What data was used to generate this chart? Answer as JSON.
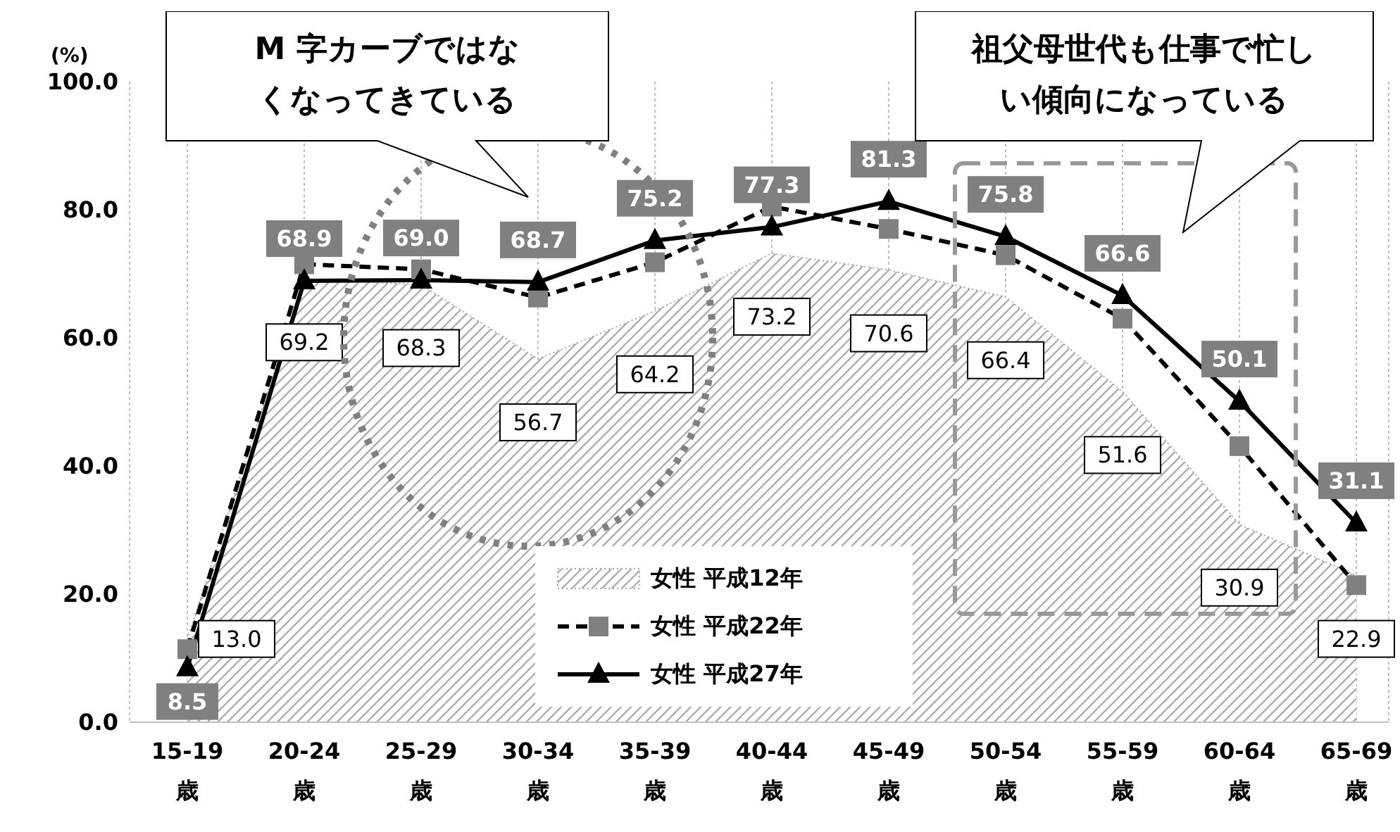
{
  "chart_data": {
    "type": "line",
    "ylabel": "(%)",
    "categories": [
      "15-19\n歳",
      "20-24\n歳",
      "25-29\n歳",
      "30-34\n歳",
      "35-39\n歳",
      "40-44\n歳",
      "45-49\n歳",
      "50-54\n歳",
      "55-59\n歳",
      "60-64\n歳",
      "65-69\n歳"
    ],
    "series": [
      {
        "name": "女性 平成12年",
        "type": "area",
        "color": "#a6a6a6",
        "marker": "none",
        "line_style": "dotted",
        "values": [
          13.0,
          69.2,
          68.3,
          56.7,
          64.2,
          73.2,
          70.6,
          66.4,
          51.6,
          30.9,
          22.9
        ],
        "value_labels": [
          "13.0",
          "69.2",
          "68.3",
          "56.7",
          "64.2",
          "73.2",
          "70.6",
          "66.4",
          "51.6",
          "30.9",
          "22.9"
        ]
      },
      {
        "name": "女性 平成22年",
        "color": "#000000",
        "marker": "square",
        "line_style": "dashed",
        "values": [
          11.4,
          71.5,
          70.7,
          66.3,
          71.8,
          80.5,
          77.0,
          72.9,
          63.0,
          43.1,
          21.4
        ]
      },
      {
        "name": "女性 平成27年",
        "color": "#000000",
        "marker": "triangle",
        "line_style": "solid",
        "values": [
          8.5,
          68.9,
          69.0,
          68.7,
          75.2,
          77.3,
          81.3,
          75.8,
          66.6,
          50.1,
          31.1
        ],
        "value_labels": [
          "8.5",
          "68.9",
          "69.0",
          "68.7",
          "75.2",
          "77.3",
          "81.3",
          "75.8",
          "66.6",
          "50.1",
          "31.1"
        ]
      }
    ],
    "ylim": [
      0,
      100
    ],
    "yticks": [
      {
        "value": 0,
        "label": "0.0"
      },
      {
        "value": 20,
        "label": "20.0"
      },
      {
        "value": 40,
        "label": "40.0"
      },
      {
        "value": 60,
        "label": "60.0"
      },
      {
        "value": 80,
        "label": "80.0"
      },
      {
        "value": 100,
        "label": "100.0"
      }
    ],
    "grid": "x",
    "legend": "bottom",
    "annotations": [
      "M 字カーブではなくなってきている",
      "祖父母世代も仕事で忙しい傾向になっている"
    ]
  }
}
